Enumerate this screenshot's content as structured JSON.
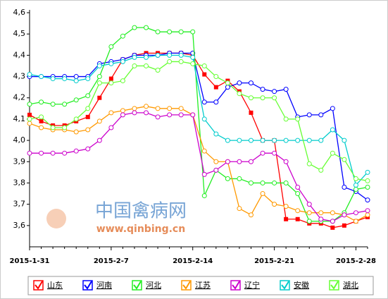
{
  "chart_data": {
    "type": "line",
    "categories": [
      "2015-1-31",
      null,
      null,
      null,
      null,
      null,
      null,
      "2015-2-7",
      null,
      null,
      null,
      null,
      null,
      null,
      "2015-2-14",
      null,
      null,
      null,
      null,
      null,
      null,
      "2015-2-21",
      null,
      null,
      null,
      null,
      null,
      null,
      "2015-2-28",
      null
    ],
    "series": [
      {
        "name": "山东",
        "color": "#ff0000",
        "marker": "square",
        "values": [
          4.12,
          4.09,
          4.07,
          4.07,
          4.09,
          4.11,
          4.2,
          4.29,
          4.38,
          4.4,
          4.41,
          4.41,
          4.41,
          4.41,
          4.4,
          4.31,
          4.25,
          4.28,
          4.23,
          4.13,
          4.0,
          4.0,
          3.63,
          3.63,
          3.61,
          3.61,
          3.59,
          3.6,
          3.62,
          3.64
        ]
      },
      {
        "name": "河南",
        "color": "#0000ff",
        "marker": "circle",
        "values": [
          4.3,
          4.3,
          4.3,
          4.3,
          4.3,
          4.3,
          4.36,
          4.37,
          4.38,
          4.4,
          4.4,
          4.4,
          4.41,
          4.41,
          4.41,
          4.18,
          4.18,
          4.25,
          4.27,
          4.27,
          4.24,
          4.23,
          4.24,
          4.11,
          4.12,
          4.12,
          4.15,
          3.78,
          3.76,
          3.72
        ]
      },
      {
        "name": "河北",
        "color": "#22ee22",
        "marker": "circle",
        "values": [
          4.17,
          4.18,
          4.17,
          4.17,
          4.19,
          4.21,
          4.3,
          4.44,
          4.49,
          4.53,
          4.53,
          4.51,
          4.51,
          4.51,
          4.51,
          3.74,
          3.86,
          3.82,
          3.82,
          3.8,
          3.8,
          3.8,
          3.8,
          3.75,
          3.62,
          3.62,
          3.62,
          3.66,
          3.77,
          3.78
        ]
      },
      {
        "name": "江苏",
        "color": "#ff9900",
        "marker": "circle",
        "values": [
          4.08,
          4.06,
          4.05,
          4.05,
          4.04,
          4.05,
          4.09,
          4.13,
          4.14,
          4.15,
          4.16,
          4.15,
          4.15,
          4.15,
          4.12,
          3.95,
          3.9,
          3.9,
          3.68,
          3.65,
          3.75,
          3.7,
          3.69,
          3.67,
          3.66,
          3.66,
          3.66,
          3.65,
          3.62,
          3.65
        ]
      },
      {
        "name": "辽宁",
        "color": "#cc00cc",
        "marker": "circle",
        "values": [
          3.94,
          3.94,
          3.94,
          3.94,
          3.95,
          3.96,
          4.0,
          4.06,
          4.12,
          4.13,
          4.13,
          4.11,
          4.12,
          4.12,
          4.12,
          3.84,
          3.86,
          3.9,
          3.9,
          3.9,
          3.94,
          3.94,
          3.9,
          3.78,
          3.7,
          3.63,
          3.62,
          3.65,
          3.66,
          3.67
        ]
      },
      {
        "name": "安徽",
        "color": "#00cccc",
        "marker": "circle",
        "values": [
          4.31,
          4.3,
          4.29,
          4.29,
          4.28,
          4.29,
          4.35,
          4.36,
          4.37,
          4.39,
          4.39,
          4.4,
          4.4,
          4.4,
          4.39,
          4.1,
          4.03,
          4.0,
          4.0,
          4.0,
          4.0,
          4.0,
          4.0,
          4.0,
          4.0,
          4.0,
          4.05,
          4.0,
          3.79,
          3.85
        ]
      },
      {
        "name": "湖北",
        "color": "#66ff33",
        "marker": "circle",
        "values": [
          4.1,
          4.11,
          4.06,
          4.06,
          4.1,
          4.15,
          4.27,
          4.27,
          4.28,
          4.35,
          4.35,
          4.33,
          4.37,
          4.37,
          4.36,
          4.35,
          4.3,
          4.27,
          4.22,
          4.2,
          4.2,
          4.2,
          4.1,
          4.1,
          3.89,
          3.86,
          3.94,
          3.91,
          3.82,
          3.81
        ]
      }
    ],
    "ylim": [
      3.5,
      4.6
    ],
    "yticks": [
      {
        "value": 3.6,
        "label": "3,6"
      },
      {
        "value": 3.7,
        "label": "3,7"
      },
      {
        "value": 3.8,
        "label": "3,8"
      },
      {
        "value": 3.9,
        "label": "3,9"
      },
      {
        "value": 4.0,
        "label": "4,0"
      },
      {
        "value": 4.1,
        "label": "4,1"
      },
      {
        "value": 4.2,
        "label": "4,2"
      },
      {
        "value": 4.3,
        "label": "4,3"
      },
      {
        "value": 4.4,
        "label": "4,4"
      },
      {
        "value": 4.5,
        "label": "4,5"
      },
      {
        "value": 4.6,
        "label": "4,6"
      }
    ],
    "grid": false,
    "legend": "bottom",
    "watermark": {
      "title": "中国禽病网",
      "url": "www.qinbing.cn"
    }
  }
}
